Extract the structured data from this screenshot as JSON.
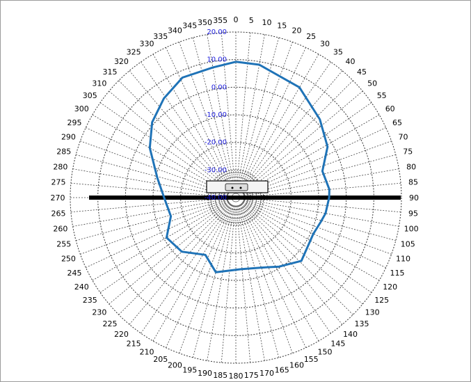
{
  "chart_data": {
    "type": "polar-line",
    "title": "",
    "angle_ticks": [
      0,
      5,
      10,
      15,
      20,
      25,
      30,
      35,
      40,
      45,
      50,
      55,
      60,
      65,
      70,
      75,
      80,
      85,
      90,
      95,
      100,
      105,
      110,
      115,
      120,
      125,
      130,
      135,
      140,
      145,
      150,
      155,
      160,
      165,
      170,
      175,
      180,
      185,
      190,
      195,
      200,
      205,
      210,
      215,
      220,
      225,
      230,
      235,
      240,
      245,
      250,
      255,
      260,
      265,
      270,
      275,
      280,
      285,
      290,
      295,
      300,
      305,
      310,
      315,
      320,
      325,
      330,
      335,
      340,
      345,
      350,
      355
    ],
    "radial_ticks": [
      "20.00",
      "10.00",
      "0.00",
      "-10.00",
      "-20.00",
      "-30.00",
      "-40.00"
    ],
    "rlim": [
      -40,
      20
    ],
    "grid": true,
    "series": [
      {
        "color": "#1f73b7",
        "angles": [
          0,
          10,
          30,
          47,
          61,
          73,
          85,
          90,
          100,
          106,
          115,
          134,
          148,
          160,
          176,
          195,
          208,
          225,
          240,
          254,
          270,
          284,
          300,
          312,
          324,
          336,
          350,
          360
        ],
        "values": [
          9.2,
          8.9,
          6.1,
          1.6,
          -2.0,
          -7.2,
          -6.0,
          -6.2,
          -7.0,
          -8.0,
          -9.0,
          -7.0,
          -10.5,
          -13.0,
          -14.0,
          -12.0,
          -16.5,
          -12.3,
          -11.0,
          -15.5,
          -14.0,
          -10.7,
          -4.0,
          0.8,
          4.4,
          7.6,
          7.9,
          9.2
        ]
      }
    ]
  }
}
